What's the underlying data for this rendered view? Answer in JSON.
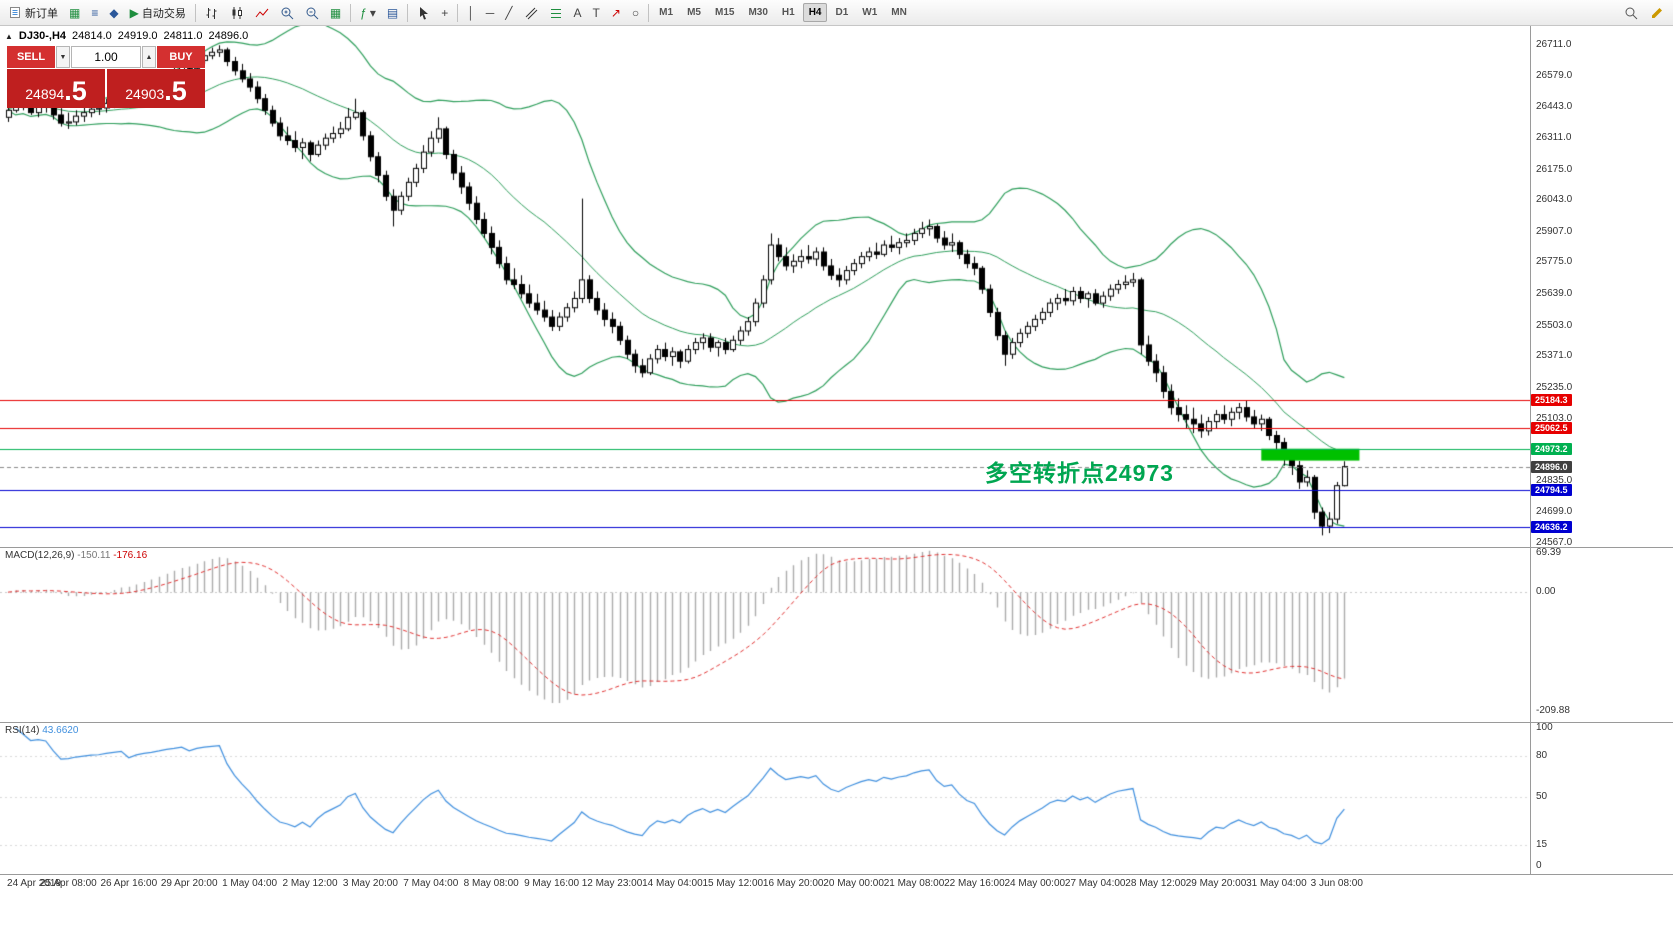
{
  "toolbar": {
    "new_order_label": "新订单",
    "auto_trading_label": "自动交易",
    "timeframes": [
      "M1",
      "M5",
      "M15",
      "M30",
      "H1",
      "H4",
      "D1",
      "W1",
      "MN"
    ],
    "active_timeframe": "H4",
    "icons": {
      "market_watch": "▦",
      "data_window": "≡",
      "navigator": "◆",
      "play": "▶",
      "tile_windows": "▦",
      "indicators": "ƒ",
      "templates": "▤",
      "dropdown": "▾",
      "crosshair": "+",
      "vertical_line": "│",
      "horizontal_line": "─",
      "trendline": "╱",
      "text": "A",
      "text_label": "T",
      "arrows": "↗",
      "shapes": "○"
    }
  },
  "symbol_header": {
    "collapse_icon": "▲",
    "symbol_period": "DJ30-,H4",
    "open": "24814.0",
    "high": "24919.0",
    "low": "24811.0",
    "close": "24896.0"
  },
  "trade_panel": {
    "sell_label": "SELL",
    "buy_label": "BUY",
    "volume": "1.00",
    "spinner_down": "▼",
    "spinner_up": "▲",
    "sell_price": "24894",
    "sell_price_frac": ".5",
    "buy_price": "24903",
    "buy_price_frac": ".5"
  },
  "chart_data": {
    "type": "candlestick",
    "symbol": "DJ30-",
    "period": "H4",
    "price_axis": {
      "min": 24550,
      "max": 26793,
      "ticks": [
        "26711.0",
        "26579.0",
        "26443.0",
        "26311.0",
        "26175.0",
        "26043.0",
        "25907.0",
        "25775.0",
        "25639.0",
        "25503.0",
        "25371.0",
        "25235.0",
        "25103.0",
        "24835.0",
        "24699.0",
        "24567.0"
      ]
    },
    "time_labels": [
      "24 Apr 2019",
      "25 Apr 08:00",
      "26 Apr 16:00",
      "29 Apr 20:00",
      "1 May 04:00",
      "2 May 12:00",
      "3 May 20:00",
      "7 May 04:00",
      "8 May 08:00",
      "9 May 16:00",
      "12 May 23:00",
      "14 May 04:00",
      "15 May 12:00",
      "16 May 20:00",
      "20 May 00:00",
      "21 May 08:00",
      "22 May 16:00",
      "24 May 00:00",
      "27 May 04:00",
      "28 May 12:00",
      "29 May 20:00",
      "31 May 04:00",
      "3 Jun 08:00"
    ],
    "overlays": {
      "bollinger": {
        "period": 20,
        "deviation": 2,
        "color": "#2e9e5b"
      }
    },
    "hlines": [
      {
        "price": 25184.3,
        "label": "25184.3",
        "color": "#e60000"
      },
      {
        "price": 25062.5,
        "label": "25062.5",
        "color": "#e60000"
      },
      {
        "price": 24973.2,
        "label": "24973.2",
        "color": "#00b050"
      },
      {
        "price": 24794.5,
        "label": "24794.5",
        "color": "#0000d0"
      },
      {
        "price": 24636.2,
        "label": "24636.2",
        "color": "#0000d0"
      }
    ],
    "current_price": {
      "value": 24896.0,
      "label": "24896.0",
      "color": "#404040"
    },
    "rect_object": {
      "price_top": 24973.2,
      "price_bottom": 24922,
      "bar_start": 166,
      "bar_end": 179,
      "color": "#00c000"
    },
    "annotation": {
      "text": "多空转折点24973",
      "color": "#00a651"
    },
    "indicators": [
      {
        "name": "MACD",
        "label": "MACD(12,26,9)",
        "value_main": "-150.11",
        "value_signal": "-176.16",
        "axis_ticks": [
          "69.39",
          "0.00",
          "-209.88"
        ],
        "histogram_color": "#ababab",
        "signal_color": "#e03030"
      },
      {
        "name": "RSI",
        "label": "RSI(14)",
        "value": "43.6620",
        "axis_ticks": [
          "100",
          "80",
          "50",
          "15",
          "0"
        ],
        "line_color": "#3f8fde",
        "levels": [
          80,
          50,
          15
        ]
      }
    ],
    "candles": [
      [
        26400,
        26460,
        26380,
        26430
      ],
      [
        26430,
        26520,
        26420,
        26470
      ],
      [
        26470,
        26510,
        26430,
        26445
      ],
      [
        26445,
        26500,
        26410,
        26420
      ],
      [
        26420,
        26480,
        26400,
        26455
      ],
      [
        26455,
        26500,
        26420,
        26450
      ],
      [
        26450,
        26465,
        26390,
        26410
      ],
      [
        26410,
        26440,
        26360,
        26375
      ],
      [
        26375,
        26420,
        26350,
        26380
      ],
      [
        26380,
        26430,
        26365,
        26405
      ],
      [
        26405,
        26450,
        26380,
        26420
      ],
      [
        26420,
        26465,
        26400,
        26435
      ],
      [
        26435,
        26470,
        26410,
        26440
      ],
      [
        26440,
        26480,
        26420,
        26460
      ],
      [
        26460,
        26500,
        26440,
        26475
      ],
      [
        26475,
        26510,
        26450,
        26490
      ],
      [
        26490,
        26515,
        26455,
        26470
      ],
      [
        26470,
        26520,
        26460,
        26505
      ],
      [
        26505,
        26545,
        26490,
        26525
      ],
      [
        26525,
        26560,
        26505,
        26540
      ],
      [
        26540,
        26580,
        26520,
        26560
      ],
      [
        26560,
        26600,
        26540,
        26585
      ],
      [
        26585,
        26620,
        26560,
        26600
      ],
      [
        26600,
        26640,
        26585,
        26620
      ],
      [
        26620,
        26650,
        26595,
        26610
      ],
      [
        26610,
        26660,
        26600,
        26645
      ],
      [
        26645,
        26685,
        26630,
        26665
      ],
      [
        26665,
        26700,
        26650,
        26680
      ],
      [
        26680,
        26710,
        26660,
        26690
      ],
      [
        26690,
        26700,
        26620,
        26640
      ],
      [
        26640,
        26660,
        26580,
        26600
      ],
      [
        26600,
        26630,
        26550,
        26565
      ],
      [
        26565,
        26590,
        26510,
        26530
      ],
      [
        26530,
        26555,
        26460,
        26480
      ],
      [
        26480,
        26500,
        26410,
        26430
      ],
      [
        26430,
        26450,
        26360,
        26375
      ],
      [
        26375,
        26400,
        26300,
        26320
      ],
      [
        26320,
        26360,
        26280,
        26300
      ],
      [
        26300,
        26340,
        26250,
        26270
      ],
      [
        26270,
        26310,
        26220,
        26290
      ],
      [
        26290,
        26300,
        26210,
        26240
      ],
      [
        26240,
        26300,
        26230,
        26280
      ],
      [
        26280,
        26330,
        26260,
        26310
      ],
      [
        26310,
        26360,
        26290,
        26330
      ],
      [
        26330,
        26380,
        26310,
        26350
      ],
      [
        26350,
        26440,
        26340,
        26400
      ],
      [
        26400,
        26480,
        26390,
        26420
      ],
      [
        26420,
        26430,
        26300,
        26320
      ],
      [
        26320,
        26340,
        26210,
        26230
      ],
      [
        26230,
        26250,
        26120,
        26150
      ],
      [
        26150,
        26170,
        26040,
        26060
      ],
      [
        26060,
        26090,
        25930,
        26000
      ],
      [
        26000,
        26080,
        25980,
        26060
      ],
      [
        26060,
        26140,
        26040,
        26120
      ],
      [
        26120,
        26200,
        26100,
        26180
      ],
      [
        26180,
        26280,
        26160,
        26250
      ],
      [
        26250,
        26340,
        26230,
        26310
      ],
      [
        26310,
        26400,
        26290,
        26350
      ],
      [
        26350,
        26360,
        26220,
        26240
      ],
      [
        26240,
        26260,
        26130,
        26160
      ],
      [
        26160,
        26190,
        26070,
        26100
      ],
      [
        26100,
        26120,
        26000,
        26030
      ],
      [
        26030,
        26060,
        25940,
        25960
      ],
      [
        25960,
        25990,
        25880,
        25900
      ],
      [
        25900,
        25930,
        25810,
        25840
      ],
      [
        25840,
        25870,
        25750,
        25770
      ],
      [
        25770,
        25800,
        25680,
        25700
      ],
      [
        25700,
        25750,
        25660,
        25680
      ],
      [
        25680,
        25720,
        25620,
        25640
      ],
      [
        25640,
        25680,
        25580,
        25600
      ],
      [
        25600,
        25640,
        25550,
        25570
      ],
      [
        25570,
        25610,
        25520,
        25540
      ],
      [
        25540,
        25570,
        25480,
        25500
      ],
      [
        25500,
        25560,
        25480,
        25540
      ],
      [
        25540,
        25600,
        25520,
        25580
      ],
      [
        25580,
        25650,
        25560,
        25620
      ],
      [
        25620,
        26050,
        25600,
        25700
      ],
      [
        25700,
        25720,
        25600,
        25620
      ],
      [
        25620,
        25650,
        25550,
        25570
      ],
      [
        25570,
        25600,
        25500,
        25530
      ],
      [
        25530,
        25560,
        25470,
        25500
      ],
      [
        25500,
        25520,
        25420,
        25440
      ],
      [
        25440,
        25460,
        25360,
        25380
      ],
      [
        25380,
        25400,
        25300,
        25330
      ],
      [
        25330,
        25360,
        25280,
        25300
      ],
      [
        25300,
        25380,
        25290,
        25360
      ],
      [
        25360,
        25420,
        25340,
        25400
      ],
      [
        25400,
        25430,
        25350,
        25370
      ],
      [
        25370,
        25410,
        25330,
        25390
      ],
      [
        25390,
        25400,
        25320,
        25350
      ],
      [
        25350,
        25420,
        25340,
        25400
      ],
      [
        25400,
        25450,
        25380,
        25430
      ],
      [
        25430,
        25470,
        25400,
        25450
      ],
      [
        25450,
        25470,
        25390,
        25410
      ],
      [
        25410,
        25440,
        25370,
        25430
      ],
      [
        25430,
        25450,
        25380,
        25400
      ],
      [
        25400,
        25460,
        25390,
        25440
      ],
      [
        25440,
        25500,
        25420,
        25480
      ],
      [
        25480,
        25540,
        25460,
        25520
      ],
      [
        25520,
        25620,
        25500,
        25600
      ],
      [
        25600,
        25720,
        25580,
        25700
      ],
      [
        25700,
        25900,
        25680,
        25850
      ],
      [
        25850,
        25880,
        25780,
        25800
      ],
      [
        25800,
        25840,
        25740,
        25760
      ],
      [
        25760,
        25810,
        25730,
        25780
      ],
      [
        25780,
        25830,
        25750,
        25800
      ],
      [
        25800,
        25850,
        25770,
        25790
      ],
      [
        25790,
        25840,
        25760,
        25820
      ],
      [
        25820,
        25840,
        25740,
        25760
      ],
      [
        25760,
        25790,
        25700,
        25720
      ],
      [
        25720,
        25750,
        25670,
        25700
      ],
      [
        25700,
        25760,
        25680,
        25740
      ],
      [
        25740,
        25790,
        25720,
        25770
      ],
      [
        25770,
        25820,
        25750,
        25800
      ],
      [
        25800,
        25840,
        25780,
        25820
      ],
      [
        25820,
        25860,
        25790,
        25810
      ],
      [
        25810,
        25870,
        25800,
        25850
      ],
      [
        25850,
        25890,
        25820,
        25840
      ],
      [
        25840,
        25880,
        25810,
        25860
      ],
      [
        25860,
        25900,
        25840,
        25870
      ],
      [
        25870,
        25920,
        25850,
        25900
      ],
      [
        25900,
        25950,
        25880,
        25920
      ],
      [
        25920,
        25960,
        25890,
        25930
      ],
      [
        25930,
        25940,
        25860,
        25880
      ],
      [
        25880,
        25910,
        25830,
        25850
      ],
      [
        25850,
        25900,
        25820,
        25860
      ],
      [
        25860,
        25870,
        25790,
        25810
      ],
      [
        25810,
        25830,
        25750,
        25770
      ],
      [
        25770,
        25800,
        25720,
        25750
      ],
      [
        25750,
        25760,
        25640,
        25660
      ],
      [
        25660,
        25680,
        25540,
        25560
      ],
      [
        25560,
        25580,
        25440,
        25460
      ],
      [
        25460,
        25480,
        25330,
        25380
      ],
      [
        25380,
        25450,
        25360,
        25430
      ],
      [
        25430,
        25490,
        25410,
        25470
      ],
      [
        25470,
        25520,
        25450,
        25500
      ],
      [
        25500,
        25550,
        25480,
        25530
      ],
      [
        25530,
        25580,
        25510,
        25560
      ],
      [
        25560,
        25620,
        25540,
        25600
      ],
      [
        25600,
        25640,
        25570,
        25620
      ],
      [
        25620,
        25660,
        25590,
        25610
      ],
      [
        25610,
        25670,
        25590,
        25650
      ],
      [
        25650,
        25670,
        25600,
        25620
      ],
      [
        25620,
        25650,
        25580,
        25640
      ],
      [
        25640,
        25660,
        25590,
        25600
      ],
      [
        25600,
        25650,
        25580,
        25630
      ],
      [
        25630,
        25680,
        25610,
        25660
      ],
      [
        25660,
        25700,
        25640,
        25680
      ],
      [
        25680,
        25720,
        25660,
        25690
      ],
      [
        25690,
        25730,
        25670,
        25700
      ],
      [
        25700,
        25710,
        25380,
        25420
      ],
      [
        25420,
        25460,
        25330,
        25350
      ],
      [
        25350,
        25380,
        25260,
        25300
      ],
      [
        25300,
        25330,
        25190,
        25220
      ],
      [
        25220,
        25250,
        25120,
        25150
      ],
      [
        25150,
        25190,
        25090,
        25120
      ],
      [
        25120,
        25160,
        25060,
        25100
      ],
      [
        25100,
        25150,
        25040,
        25080
      ],
      [
        25080,
        25120,
        25020,
        25050
      ],
      [
        25050,
        25110,
        25030,
        25090
      ],
      [
        25090,
        25140,
        25060,
        25120
      ],
      [
        25120,
        25160,
        25080,
        25100
      ],
      [
        25100,
        25150,
        25070,
        25130
      ],
      [
        25130,
        25170,
        25100,
        25150
      ],
      [
        25150,
        25180,
        25090,
        25110
      ],
      [
        25110,
        25140,
        25060,
        25080
      ],
      [
        25080,
        25120,
        25050,
        25100
      ],
      [
        25100,
        25110,
        25010,
        25030
      ],
      [
        25030,
        25050,
        24960,
        25000
      ],
      [
        25000,
        25020,
        24900,
        24930
      ],
      [
        24930,
        24950,
        24860,
        24900
      ],
      [
        24900,
        24920,
        24800,
        24830
      ],
      [
        24830,
        24880,
        24810,
        24850
      ],
      [
        24850,
        24860,
        24670,
        24700
      ],
      [
        24700,
        24720,
        24600,
        24640
      ],
      [
        24640,
        24700,
        24610,
        24670
      ],
      [
        24670,
        24830,
        24650,
        24814
      ],
      [
        24814,
        24919,
        24811,
        24896
      ]
    ]
  }
}
